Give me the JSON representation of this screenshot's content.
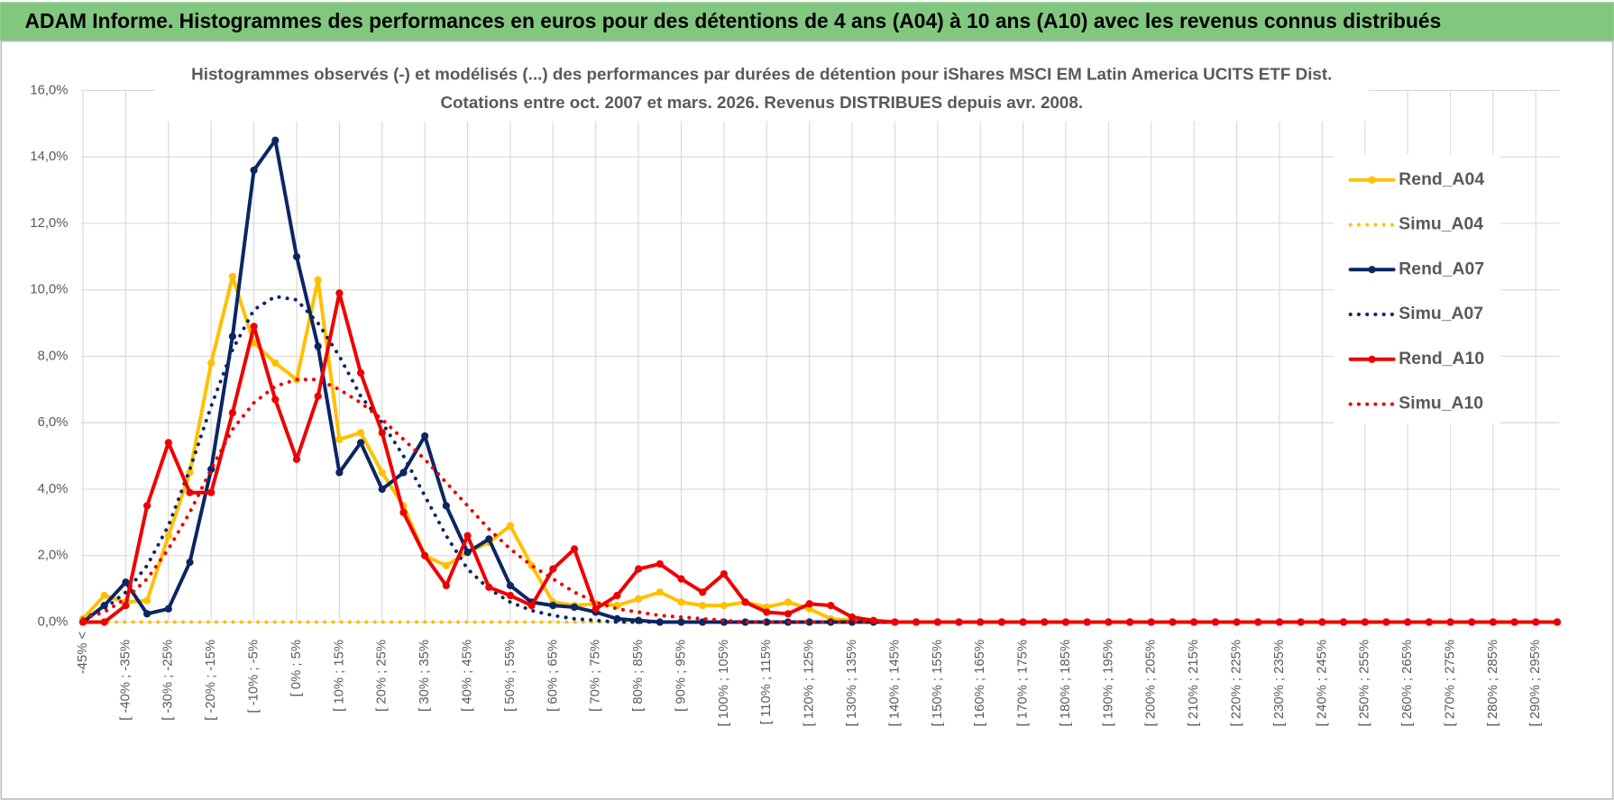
{
  "header": {
    "title": "ADAM Informe. Histogrammes des performances en euros pour des détentions de 4 ans (A04) à 10 ans (A10) avec les revenus connus distribués"
  },
  "chart_data": {
    "type": "line",
    "title": [
      "Histogrammes observés (-) et modélisés (...) des performances par durées de détention pour iShares MSCI EM Latin America UCITS ETF Dist.",
      "Cotations entre oct. 2007 et mars. 2026. Revenus DISTRIBUES depuis avr. 2008."
    ],
    "categories": [
      "-45% <",
      null,
      "[ -40% ; -35%",
      null,
      "[ -30% ; -25%",
      null,
      "[ -20% ; -15%",
      null,
      "[ -10% ; -5%",
      null,
      "[ 0% ; 5%",
      null,
      "[ 10% ; 15%",
      null,
      "[ 20% ; 25%",
      null,
      "[ 30% ; 35%",
      null,
      "[ 40% ; 45%",
      null,
      "[ 50% ; 55%",
      null,
      "[ 60% ; 65%",
      null,
      "[ 70% ; 75%",
      null,
      "[ 80% ; 85%",
      null,
      "[ 90% ; 95%",
      null,
      "[ 100% ; 105%",
      null,
      "[ 110% ; 115%",
      null,
      "[ 120% ; 125%",
      null,
      "[ 130% ; 135%",
      null,
      "[ 140% ; 145%",
      null,
      "[ 150% ; 155%",
      null,
      "[ 160% ; 165%",
      null,
      "[ 170% ; 175%",
      null,
      "[ 180% ; 185%",
      null,
      "[ 190% ; 195%",
      null,
      "[ 200% ; 205%",
      null,
      "[ 210% ; 215%",
      null,
      "[ 220% ; 225%",
      null,
      "[ 230% ; 235%",
      null,
      "[ 240% ; 245%",
      null,
      "[ 250% ; 255%",
      null,
      "[ 260% ; 265%",
      null,
      "[ 270% ; 275%",
      null,
      "[ 280% ; 285%",
      null,
      "[ 290% ; 295%",
      null
    ],
    "ylim": [
      0,
      16
    ],
    "yticks": [
      {
        "value": 0,
        "label": "0,0%"
      },
      {
        "value": 2,
        "label": "2,0%"
      },
      {
        "value": 4,
        "label": "4,0%"
      },
      {
        "value": 6,
        "label": "6,0%"
      },
      {
        "value": 8,
        "label": "8,0%"
      },
      {
        "value": 10,
        "label": "10,0%"
      },
      {
        "value": 12,
        "label": "12,0%"
      },
      {
        "value": 14,
        "label": "14,0%"
      },
      {
        "value": 16,
        "label": "16,0%"
      }
    ],
    "grid": true,
    "legend": "right",
    "series": [
      {
        "name": "Rend_A04",
        "color": "#ffc000",
        "line_style": "solid",
        "markers": true,
        "values": [
          0.1,
          0.8,
          0.6,
          0.65,
          2.6,
          4.5,
          7.8,
          10.4,
          8.4,
          7.8,
          7.3,
          10.3,
          5.5,
          5.7,
          4.5,
          3.5,
          2.0,
          1.7,
          2.1,
          2.4,
          2.9,
          1.7,
          0.6,
          0.5,
          0.55,
          0.5,
          0.7,
          0.9,
          0.6,
          0.5,
          0.5,
          0.6,
          0.45,
          0.6,
          0.4,
          0.1,
          0.05,
          0,
          0,
          0,
          0,
          0,
          0,
          0,
          0,
          0,
          0,
          0,
          0,
          0,
          0,
          0,
          0,
          0,
          0,
          0,
          0,
          0,
          0,
          0,
          0,
          0,
          0,
          0,
          0,
          0,
          0,
          0,
          0,
          0
        ]
      },
      {
        "name": "Simu_A04",
        "color": "#ffc000",
        "line_style": "dotted",
        "markers": false,
        "values": [
          0,
          0,
          0,
          0,
          0,
          0,
          0,
          0,
          0,
          0,
          0,
          0,
          0,
          0,
          0,
          0,
          0,
          0,
          0,
          0,
          0,
          0,
          0,
          0,
          0,
          0,
          0,
          0,
          0,
          0,
          0,
          0,
          0,
          0,
          0,
          0,
          0,
          0,
          0,
          0,
          0,
          0,
          0,
          0,
          0,
          0,
          0,
          0,
          0,
          0,
          0,
          0,
          0,
          0,
          0,
          0,
          0,
          0,
          0,
          0,
          0,
          0,
          0,
          0,
          0,
          0,
          0,
          0,
          0,
          0
        ]
      },
      {
        "name": "Rend_A07",
        "color": "#0b2663",
        "line_style": "solid",
        "markers": true,
        "values": [
          0,
          0.5,
          1.2,
          0.25,
          0.4,
          1.8,
          4.6,
          8.6,
          13.6,
          14.5,
          11.0,
          8.3,
          4.5,
          5.4,
          4.0,
          4.5,
          5.6,
          3.5,
          2.1,
          2.5,
          1.1,
          0.6,
          0.5,
          0.45,
          0.3,
          0.1,
          0.05,
          0,
          0,
          0,
          0,
          0,
          0,
          0,
          0,
          0,
          0,
          0,
          0,
          0,
          0,
          0,
          0,
          0,
          0,
          0,
          0,
          0,
          0,
          0,
          0,
          0,
          0,
          0,
          0,
          0,
          0,
          0,
          0,
          0,
          0,
          0,
          0,
          0,
          0,
          0,
          0,
          0,
          0,
          0
        ]
      },
      {
        "name": "Simu_A07",
        "color": "#0b2663",
        "line_style": "dotted",
        "markers": false,
        "values": [
          0.1,
          0.4,
          0.9,
          1.7,
          2.9,
          4.6,
          6.5,
          8.2,
          9.4,
          9.8,
          9.7,
          9.0,
          8.0,
          6.8,
          6.0,
          5.0,
          3.8,
          2.6,
          1.6,
          1.0,
          0.6,
          0.35,
          0.2,
          0.1,
          0.05,
          0,
          0,
          0,
          0,
          0,
          0,
          0,
          0,
          0,
          0,
          0,
          0,
          0,
          0,
          0,
          0,
          0,
          0,
          0,
          0,
          0,
          0,
          0,
          0,
          0,
          0,
          0,
          0,
          0,
          0,
          0,
          0,
          0,
          0,
          0,
          0,
          0,
          0,
          0,
          0,
          0,
          0,
          0,
          0,
          0
        ]
      },
      {
        "name": "Rend_A10",
        "color": "#ee0000",
        "line_style": "solid",
        "markers": true,
        "values": [
          0,
          0,
          0.5,
          3.5,
          5.4,
          3.9,
          3.9,
          6.3,
          8.9,
          6.7,
          4.9,
          6.8,
          9.9,
          7.5,
          5.7,
          3.3,
          2.0,
          1.1,
          2.6,
          1.05,
          0.8,
          0.5,
          1.6,
          2.2,
          0.4,
          0.8,
          1.6,
          1.75,
          1.3,
          0.9,
          1.45,
          0.6,
          0.3,
          0.25,
          0.55,
          0.5,
          0.15,
          0.05,
          0,
          0,
          0,
          0,
          0,
          0,
          0,
          0,
          0,
          0,
          0,
          0,
          0,
          0,
          0,
          0,
          0,
          0,
          0,
          0,
          0,
          0,
          0,
          0,
          0,
          0,
          0,
          0,
          0,
          0,
          0,
          0
        ]
      },
      {
        "name": "Simu_A10",
        "color": "#ee0000",
        "line_style": "dotted",
        "markers": false,
        "values": [
          0.1,
          0.3,
          0.7,
          1.3,
          2.2,
          3.3,
          4.6,
          5.8,
          6.6,
          7.1,
          7.3,
          7.3,
          7.0,
          6.6,
          6.1,
          5.5,
          4.9,
          4.2,
          3.5,
          2.8,
          2.2,
          1.7,
          1.3,
          0.9,
          0.6,
          0.4,
          0.3,
          0.2,
          0.15,
          0.1,
          0.05,
          0,
          0,
          0,
          0,
          0,
          0,
          0,
          0,
          0,
          0,
          0,
          0,
          0,
          0,
          0,
          0,
          0,
          0,
          0,
          0,
          0,
          0,
          0,
          0,
          0,
          0,
          0,
          0,
          0,
          0,
          0,
          0,
          0,
          0,
          0,
          0,
          0,
          0,
          0
        ]
      }
    ]
  }
}
